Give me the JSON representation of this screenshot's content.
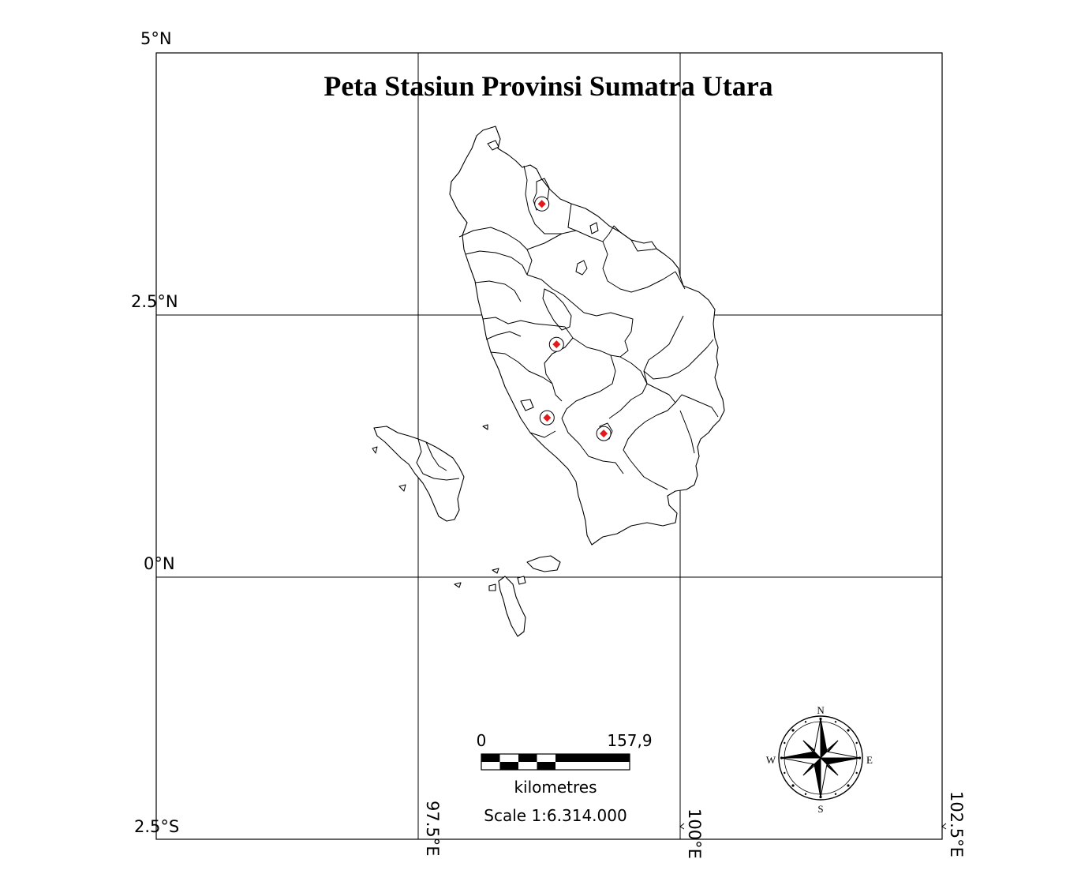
{
  "map": {
    "title": "Peta Stasiun Provinsi Sumatra Utara",
    "grid": {
      "lat_labels": [
        "5°N",
        "2.5°N",
        "0°N",
        "2.5°S"
      ],
      "lon_labels": [
        "97.5°E",
        "100°E",
        "102.5°E"
      ]
    },
    "stations": [
      {
        "lat": 3.56,
        "lon": 98.68
      },
      {
        "lat": 2.22,
        "lon": 98.82
      },
      {
        "lat": 1.52,
        "lon": 98.73
      },
      {
        "lat": 1.37,
        "lon": 99.27
      }
    ],
    "station_colors": {
      "marker": "#e31a1c",
      "ring": "#000000"
    },
    "scale_bar": {
      "start_label": "0",
      "end_label": "157,9",
      "unit": "kilometres",
      "scale_text": "Scale 1:6.314.000"
    },
    "north_arrow": {
      "n": "N",
      "e": "E",
      "s": "S",
      "w": "W"
    }
  }
}
